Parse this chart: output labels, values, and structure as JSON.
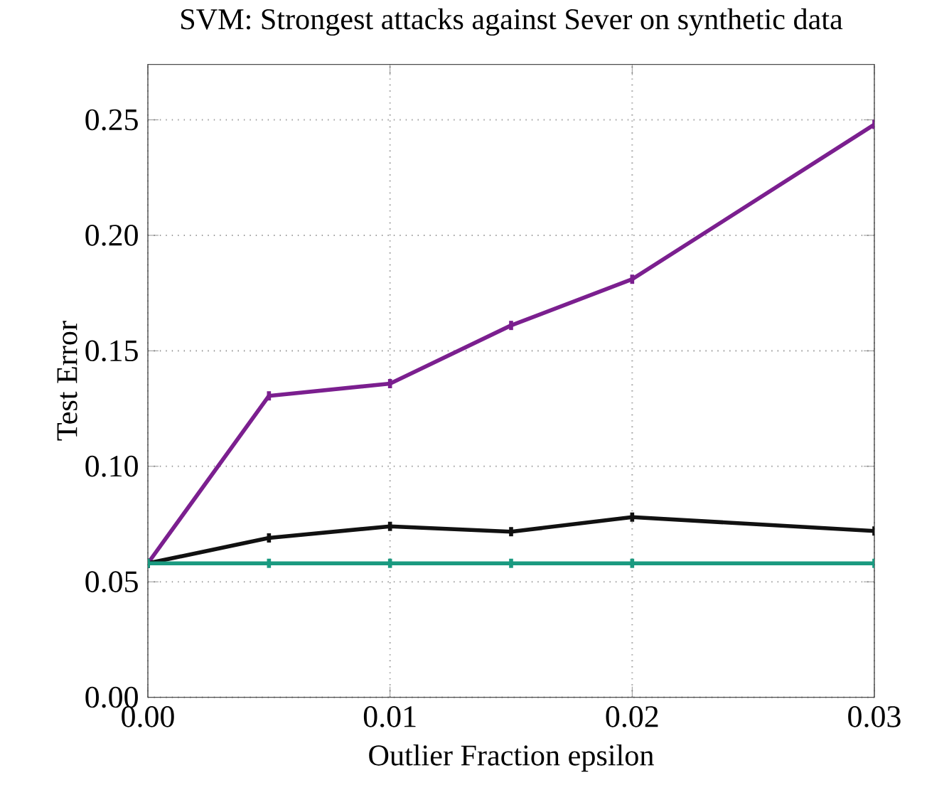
{
  "chart_data": {
    "type": "line",
    "title": "SVM: Strongest attacks against Sever on synthetic data",
    "xlabel": "Outlier Fraction epsilon",
    "ylabel": "Test Error",
    "x": [
      0,
      0.005,
      0.01,
      0.015,
      0.02,
      0.03
    ],
    "series": [
      {
        "color": "#7b1f8f",
        "values": [
          0.058,
          0.1305,
          0.1358,
          0.161,
          0.181,
          0.248
        ],
        "errors": [
          0.002,
          0.002,
          0.002,
          0.002,
          0.002,
          0.002
        ]
      },
      {
        "color": "#111111",
        "values": [
          0.058,
          0.069,
          0.074,
          0.0717,
          0.078,
          0.072
        ],
        "errors": [
          0.002,
          0.002,
          0.002,
          0.002,
          0.002,
          0.002
        ]
      },
      {
        "color": "#1a9a80",
        "values": [
          0.058,
          0.058,
          0.058,
          0.058,
          0.058,
          0.058
        ],
        "errors": [
          0.002,
          0.002,
          0.002,
          0.002,
          0.002,
          0.002
        ]
      }
    ],
    "xlim": [
      0,
      0.03
    ],
    "ylim": [
      0,
      0.274
    ],
    "xticks": [
      {
        "value": 0,
        "label": "0.00"
      },
      0.01,
      0.02,
      0.03
    ],
    "yticks": [
      {
        "value": 0,
        "label": "0.00"
      },
      0.05,
      {
        "value": 0.1,
        "label": "0.10"
      },
      0.15,
      {
        "value": 0.2,
        "label": "0.20"
      },
      0.25
    ],
    "grid": true,
    "line_style": "solid"
  }
}
